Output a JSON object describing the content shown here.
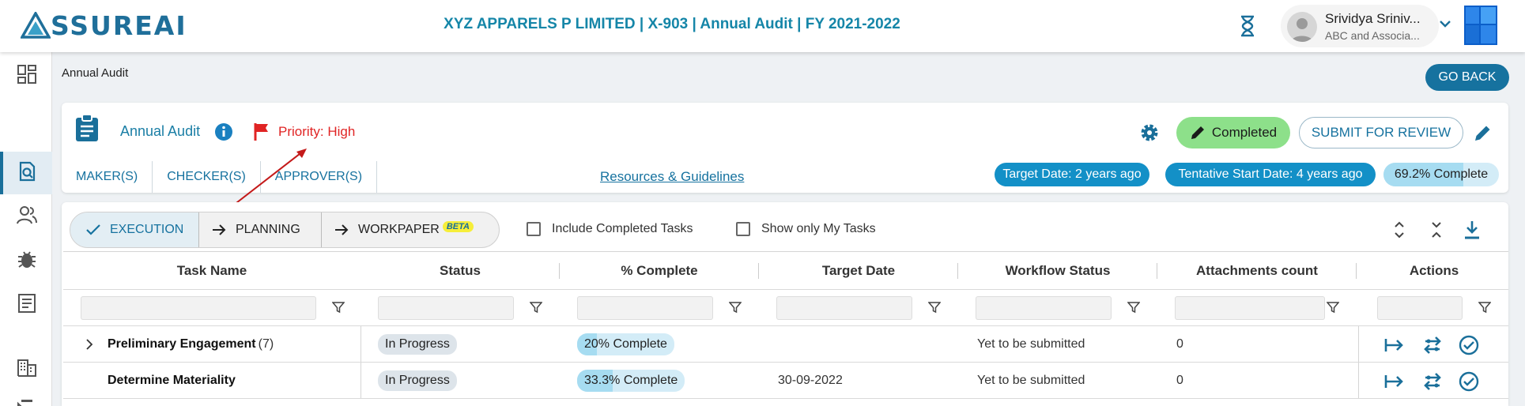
{
  "app": {
    "logo_text": "SSUREAI",
    "logo_text_full": "ASSUREAI",
    "header_title": "XYZ APPARELS P LIMITED | X-903 | Annual Audit | FY 2021-2022"
  },
  "user": {
    "name": "Srividya Sriniv...",
    "org": "ABC and Associa..."
  },
  "breadcrumb": "Annual Audit",
  "go_back_label": "GO BACK",
  "audit": {
    "name": "Annual Audit",
    "priority": "Priority: High",
    "status_label": "Completed",
    "submit_label": "SUBMIT FOR REVIEW",
    "role_tabs": [
      "MAKER(S)",
      "CHECKER(S)",
      "APPROVER(S)"
    ],
    "resources_link": "Resources & Guidelines",
    "target_date": "Target Date: 2 years ago",
    "start_date": "Tentative Start Date: 4 years ago",
    "progress": {
      "label": "69.2% Complete",
      "value": 69.2
    }
  },
  "stepper": {
    "steps": [
      "EXECUTION",
      "PLANNING",
      "WORKPAPER"
    ],
    "beta": "BETA",
    "active": "EXECUTION"
  },
  "filters": {
    "include_completed": "Include Completed Tasks",
    "only_my_tasks": "Show only My Tasks"
  },
  "table": {
    "columns": [
      "Task Name",
      "Status",
      "% Complete",
      "Target Date",
      "Workflow Status",
      "Attachments count",
      "Actions"
    ],
    "rows": [
      {
        "task": "Preliminary Engagement",
        "count": "(7)",
        "status": "In Progress",
        "complete_label": "20% Complete",
        "complete": 20,
        "target_date": "",
        "workflow": "Yet to be submitted",
        "attachments": "0",
        "expandable": true
      },
      {
        "task": "Determine Materiality",
        "count": "",
        "status": "In Progress",
        "complete_label": "33.3% Complete",
        "complete": 33.3,
        "target_date": "30-09-2022",
        "workflow": "Yet to be submitted",
        "attachments": "0",
        "expandable": false
      }
    ]
  },
  "colors": {
    "brand": "#16729f",
    "accent": "#1390c7",
    "priority": "#e02424",
    "completed": "#8de08a",
    "beta": "#f6ee3a"
  },
  "icons": [
    "logo-triangle-icon",
    "hourglass-icon",
    "chevron-down-icon",
    "windows-tiles-icon",
    "dashboard-icon",
    "audit-search-icon",
    "people-icon",
    "bug-icon",
    "document-icon",
    "building-icon",
    "triangle-settings-icon",
    "clipboard-icon",
    "info-icon",
    "flag-icon",
    "gear-icon",
    "pencil-icon",
    "check-icon",
    "arrow-right-icon",
    "expand-icon",
    "collapse-icon",
    "download-icon",
    "filter-icon",
    "assign-icon",
    "swap-icon",
    "check-circle-icon"
  ]
}
